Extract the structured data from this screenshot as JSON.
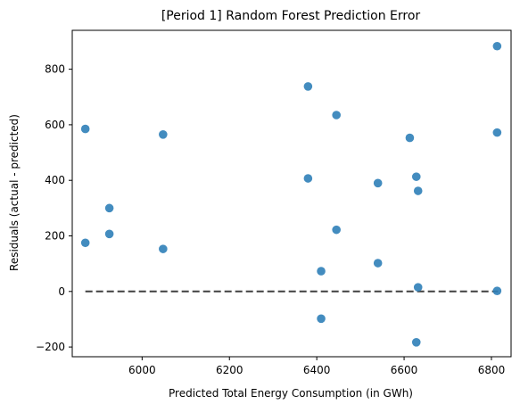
{
  "colors": {
    "points": "#2f7fb8",
    "reference_line": "#404040",
    "frame": "#000000"
  },
  "chart_data": {
    "type": "scatter",
    "title": "[Period 1] Random Forest Prediction Error",
    "xlabel": "Predicted Total Energy Consumption (in GWh)",
    "ylabel": "Residuals (actual - predicted)",
    "xlim": [
      5840,
      6845
    ],
    "ylim": [
      -235,
      940
    ],
    "xticks": [
      6000,
      6200,
      6400,
      6600,
      6800
    ],
    "yticks": [
      -200,
      0,
      200,
      400,
      600,
      800
    ],
    "grid": false,
    "legend": "none",
    "reference_line": {
      "style": "dashed",
      "y": 0,
      "x_from": 5870,
      "x_to": 6815
    },
    "points": [
      {
        "x": 5870,
        "y": 585
      },
      {
        "x": 5870,
        "y": 175
      },
      {
        "x": 5925,
        "y": 300
      },
      {
        "x": 5925,
        "y": 207
      },
      {
        "x": 6048,
        "y": 565
      },
      {
        "x": 6048,
        "y": 153
      },
      {
        "x": 6380,
        "y": 738
      },
      {
        "x": 6380,
        "y": 407
      },
      {
        "x": 6410,
        "y": 73
      },
      {
        "x": 6410,
        "y": -98
      },
      {
        "x": 6445,
        "y": 635
      },
      {
        "x": 6445,
        "y": 222
      },
      {
        "x": 6540,
        "y": 390
      },
      {
        "x": 6540,
        "y": 102
      },
      {
        "x": 6613,
        "y": 553
      },
      {
        "x": 6628,
        "y": 413
      },
      {
        "x": 6628,
        "y": -183
      },
      {
        "x": 6632,
        "y": 362
      },
      {
        "x": 6632,
        "y": 15
      },
      {
        "x": 6813,
        "y": 883
      },
      {
        "x": 6813,
        "y": 572
      },
      {
        "x": 6813,
        "y": 2
      }
    ]
  }
}
